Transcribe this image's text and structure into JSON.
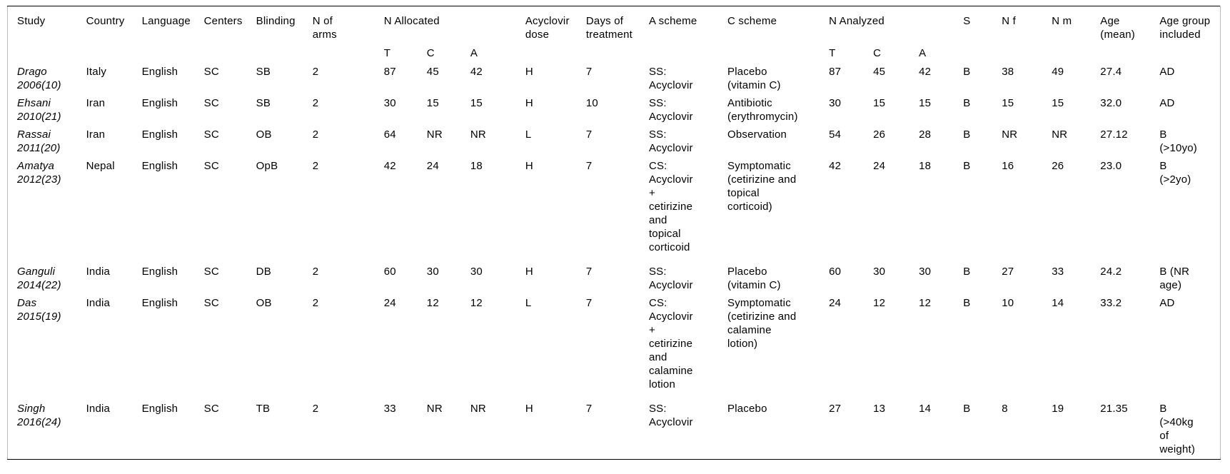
{
  "table": {
    "header_row1": [
      "Study",
      "Country",
      "Language",
      "Centers",
      "Blinding",
      "N of\narms",
      "N Allocated",
      "Acyclovir\ndose",
      "Days of\ntreatment",
      "A scheme",
      "C scheme",
      "N Analyzed",
      "S",
      "N f",
      "N m",
      "Age\n(mean)",
      "Age group\nincluded"
    ],
    "subheader": {
      "allocated": [
        "T",
        "C",
        "A"
      ],
      "analyzed": [
        "T",
        "C",
        "A"
      ]
    },
    "rows": [
      {
        "cells": [
          "Drago\n2006(10)",
          "Italy",
          "English",
          "SC",
          "SB",
          "2",
          "87",
          "45",
          "42",
          "H",
          "7",
          "SS:\nAcyclovir",
          "Placebo\n(vitamin C)",
          "87",
          "45",
          "42",
          "B",
          "38",
          "49",
          "27.4",
          "AD"
        ]
      },
      {
        "cells": [
          "Ehsani\n2010(21)",
          "Iran",
          "English",
          "SC",
          "SB",
          "2",
          "30",
          "15",
          "15",
          "H",
          "10",
          "SS:\nAcyclovir",
          "Antibiotic\n(erythromycin)",
          "30",
          "15",
          "15",
          "B",
          "15",
          "15",
          "32.0",
          "AD"
        ]
      },
      {
        "cells": [
          "Rassai\n2011(20)",
          "Iran",
          "English",
          "SC",
          "OB",
          "2",
          "64",
          "NR",
          "NR",
          "L",
          "7",
          "SS:\nAcyclovir",
          "Observation",
          "54",
          "26",
          "28",
          "B",
          "NR",
          "NR",
          "27.12",
          "B\n(>10yo)"
        ]
      },
      {
        "cells": [
          "Amatya\n2012(23)",
          "Nepal",
          "English",
          "SC",
          "OpB",
          "2",
          "42",
          "24",
          "18",
          "H",
          "7",
          "CS:\nAcyclovir\n+\ncetirizine\nand\ntopical\ncorticoid",
          "Symptomatic\n(cetirizine and\ntopical\ncorticoid)",
          "42",
          "24",
          "18",
          "B",
          "16",
          "26",
          "23.0",
          "B\n(>2yo)"
        ]
      },
      {
        "cells": [
          "Ganguli\n2014(22)",
          "India",
          "English",
          "SC",
          "DB",
          "2",
          "60",
          "30",
          "30",
          "H",
          "7",
          "SS:\nAcyclovir",
          "Placebo\n(vitamin C)",
          "60",
          "30",
          "30",
          "B",
          "27",
          "33",
          "24.2",
          "B (NR\nage)"
        ]
      },
      {
        "cells": [
          "Das\n2015(19)",
          "India",
          "English",
          "SC",
          "OB",
          "2",
          "24",
          "12",
          "12",
          "L",
          "7",
          "CS:\nAcyclovir\n+\ncetirizine\nand\ncalamine\nlotion",
          "Symptomatic\n(cetirizine and\ncalamine\nlotion)",
          "24",
          "12",
          "12",
          "B",
          "10",
          "14",
          "33.2",
          "AD"
        ]
      },
      {
        "cells": [
          "Singh\n2016(24)",
          "India",
          "English",
          "SC",
          "TB",
          "2",
          "33",
          "NR",
          "NR",
          "H",
          "7",
          "SS:\nAcyclovir",
          "Placebo",
          "27",
          "13",
          "14",
          "B",
          "8",
          "19",
          "21.35",
          "B\n(>40kg\nof\nweight)"
        ]
      }
    ]
  }
}
